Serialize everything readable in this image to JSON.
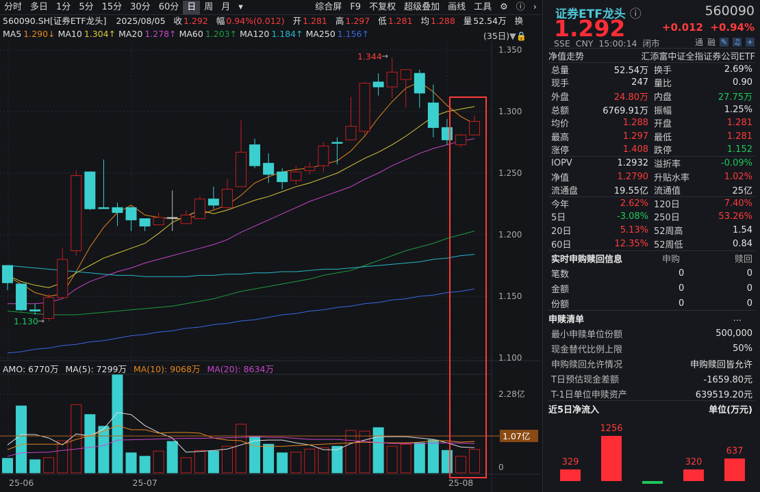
{
  "toolbar": {
    "left": [
      "分时",
      "多日",
      "1分",
      "5分",
      "15分",
      "30分",
      "60分",
      "日",
      "周",
      "月"
    ],
    "active": "日",
    "dropdown": "▾",
    "right": [
      "综合屏",
      "F9",
      "不复权",
      "超级叠加",
      "画线",
      "工具"
    ],
    "icons": [
      "gear-icon",
      "help-icon",
      "chevron-right-icon"
    ]
  },
  "info": {
    "symbol": "560090.SH[证券ETF龙头]",
    "date": "2025/08/05",
    "close_label": "收",
    "close": "1.292",
    "range_label": "幅",
    "range": "0.94%(0.012)",
    "open_label": "开",
    "open": "1.281",
    "high_label": "高",
    "high": "1.297",
    "low_label": "低",
    "low": "1.281",
    "avg_label": "均",
    "avg": "1.288",
    "vol_label": "量",
    "vol": "52.54万",
    "turn_label": "换"
  },
  "ma_legend": [
    {
      "label": "MA5",
      "value": "1.290↓",
      "color": "#e8871e"
    },
    {
      "label": "MA10",
      "value": "1.304↑",
      "color": "#d8c83a"
    },
    {
      "label": "MA20",
      "value": "1.278↑",
      "color": "#c845c8"
    },
    {
      "label": "MA60",
      "value": "1.203↑",
      "color": "#1e9e3e"
    },
    {
      "label": "MA120",
      "value": "1.184↑",
      "color": "#28b8c8"
    },
    {
      "label": "MA250",
      "value": "1.156↑",
      "color": "#3a68e0"
    }
  ],
  "days_label": "(35日)",
  "vol_legend": {
    "amo": "AMO: 6770万",
    "ma5": "MA(5): 7299万",
    "ma10": "MA(10): 9068万",
    "ma20": "MA(20): 8634万"
  },
  "chart_data": [
    {
      "type": "candlestick",
      "yticks": [
        "1.350",
        "1.300",
        "1.250",
        "1.200",
        "1.150",
        "1.100"
      ],
      "ylim": [
        1.1,
        1.35
      ],
      "high_mark": "1.344",
      "low_mark": "1.130",
      "candles": [
        [
          1.175,
          1.175,
          1.155,
          1.161
        ],
        [
          1.16,
          1.16,
          1.138,
          1.139
        ],
        [
          1.139,
          1.144,
          1.135,
          1.138
        ],
        [
          1.132,
          1.152,
          1.13,
          1.149
        ],
        [
          1.149,
          1.189,
          1.149,
          1.18
        ],
        [
          1.187,
          1.252,
          1.183,
          1.248
        ],
        [
          1.251,
          1.251,
          1.22,
          1.221
        ],
        [
          1.222,
          1.261,
          1.221,
          1.222
        ],
        [
          1.222,
          1.226,
          1.207,
          1.218
        ],
        [
          1.222,
          1.223,
          1.203,
          1.212
        ],
        [
          1.213,
          1.213,
          1.203,
          1.207
        ],
        [
          1.208,
          1.218,
          1.208,
          1.214
        ],
        [
          1.214,
          1.236,
          1.203,
          1.214
        ],
        [
          1.209,
          1.22,
          1.209,
          1.216
        ],
        [
          1.213,
          1.231,
          1.213,
          1.229
        ],
        [
          1.229,
          1.239,
          1.221,
          1.224
        ],
        [
          1.222,
          1.245,
          1.221,
          1.237
        ],
        [
          1.239,
          1.293,
          1.239,
          1.267
        ],
        [
          1.273,
          1.278,
          1.254,
          1.256
        ],
        [
          1.258,
          1.266,
          1.242,
          1.249
        ],
        [
          1.251,
          1.254,
          1.237,
          1.243
        ],
        [
          1.244,
          1.256,
          1.241,
          1.251
        ],
        [
          1.252,
          1.259,
          1.249,
          1.255
        ],
        [
          1.256,
          1.275,
          1.251,
          1.272
        ],
        [
          1.275,
          1.279,
          1.257,
          1.275
        ],
        [
          1.277,
          1.312,
          1.277,
          1.288
        ],
        [
          1.284,
          1.324,
          1.281,
          1.323
        ],
        [
          1.324,
          1.331,
          1.313,
          1.32
        ],
        [
          1.32,
          1.344,
          1.311,
          1.332
        ],
        [
          1.326,
          1.334,
          1.303,
          1.334
        ],
        [
          1.331,
          1.334,
          1.303,
          1.315
        ],
        [
          1.307,
          1.322,
          1.279,
          1.287
        ],
        [
          1.287,
          1.294,
          1.273,
          1.277
        ],
        [
          1.273,
          1.282,
          1.271,
          1.281
        ],
        [
          1.281,
          1.297,
          1.281,
          1.292
        ]
      ],
      "candle_format": [
        "open",
        "high",
        "low",
        "close"
      ],
      "ma": {
        "MA5": [
          1.166,
          1.16,
          1.153,
          1.15,
          1.152,
          1.17,
          1.19,
          1.206,
          1.218,
          1.224,
          1.216,
          1.214,
          1.213,
          1.213,
          1.216,
          1.22,
          1.224,
          1.232,
          1.242,
          1.247,
          1.251,
          1.253,
          1.254,
          1.257,
          1.26,
          1.268,
          1.28,
          1.295,
          1.308,
          1.319,
          1.324,
          1.316,
          1.305,
          1.296,
          1.29
        ],
        "MA10": [
          1.167,
          1.162,
          1.159,
          1.157,
          1.161,
          1.169,
          1.175,
          1.181,
          1.185,
          1.189,
          1.193,
          1.201,
          1.21,
          1.215,
          1.22,
          1.217,
          1.22,
          1.224,
          1.228,
          1.231,
          1.235,
          1.239,
          1.242,
          1.246,
          1.25,
          1.256,
          1.262,
          1.267,
          1.273,
          1.28,
          1.288,
          1.296,
          1.3,
          1.302,
          1.304
        ],
        "MA20": [
          1.144,
          1.144,
          1.144,
          1.145,
          1.148,
          1.156,
          1.162,
          1.166,
          1.17,
          1.173,
          1.177,
          1.18,
          1.183,
          1.186,
          1.189,
          1.192,
          1.196,
          1.202,
          1.207,
          1.212,
          1.217,
          1.222,
          1.227,
          1.231,
          1.235,
          1.239,
          1.245,
          1.25,
          1.256,
          1.261,
          1.266,
          1.27,
          1.273,
          1.276,
          1.278
        ],
        "MA60": [
          1.138,
          1.137,
          1.136,
          1.135,
          1.135,
          1.135,
          1.136,
          1.137,
          1.138,
          1.139,
          1.14,
          1.141,
          1.142,
          1.144,
          1.146,
          1.148,
          1.151,
          1.154,
          1.156,
          1.158,
          1.16,
          1.162,
          1.164,
          1.167,
          1.169,
          1.171,
          1.175,
          1.179,
          1.183,
          1.187,
          1.19,
          1.193,
          1.197,
          1.2,
          1.203
        ],
        "MA120": [
          1.175,
          1.174,
          1.173,
          1.172,
          1.171,
          1.17,
          1.169,
          1.168,
          1.167,
          1.167,
          1.166,
          1.166,
          1.166,
          1.166,
          1.167,
          1.167,
          1.168,
          1.168,
          1.169,
          1.169,
          1.17,
          1.17,
          1.171,
          1.172,
          1.172,
          1.173,
          1.174,
          1.175,
          1.176,
          1.177,
          1.178,
          1.18,
          1.181,
          1.183,
          1.184
        ],
        "MA250": [
          1.104,
          1.105,
          1.107,
          1.108,
          1.11,
          1.111,
          1.113,
          1.114,
          1.116,
          1.118,
          1.119,
          1.121,
          1.122,
          1.124,
          1.125,
          1.127,
          1.128,
          1.13,
          1.131,
          1.133,
          1.135,
          1.136,
          1.138,
          1.139,
          1.141,
          1.142,
          1.144,
          1.145,
          1.147,
          1.148,
          1.15,
          1.151,
          1.153,
          1.154,
          1.156
        ]
      },
      "up_color": "#c81e1e",
      "down_color": "#3ccfcf"
    },
    {
      "type": "bar",
      "unit": "亿",
      "yticks": [
        "2.28亿",
        "0"
      ],
      "marker": "1.07亿",
      "marker_value": 1.07,
      "values": [
        0.42,
        1.94,
        0.38,
        0.44,
        0.93,
        1.98,
        1.69,
        1.35,
        2.84,
        0.58,
        0.48,
        0.63,
        0.91,
        0.44,
        0.65,
        0.63,
        0.77,
        1.41,
        1.05,
        0.83,
        0.58,
        0.6,
        0.69,
        0.73,
        0.77,
        1.23,
        1.21,
        1.31,
        0.77,
        0.83,
        0.87,
        0.95,
        0.65,
        0.48,
        0.68
      ],
      "ma": {
        "MA5": [
          0.81,
          1.11,
          1.11,
          1.01,
          0.81,
          1.13,
          1.07,
          1.27,
          1.75,
          1.69,
          1.37,
          1.17,
          1.01,
          0.6,
          0.62,
          0.65,
          0.69,
          0.81,
          0.93,
          0.95,
          0.95,
          0.87,
          0.81,
          0.67,
          0.67,
          0.85,
          0.95,
          1.05,
          1.05,
          1.05,
          1.01,
          0.97,
          0.87,
          0.75,
          0.73
        ],
        "MA10": [
          0.67,
          0.83,
          0.83,
          0.83,
          0.83,
          0.97,
          1.07,
          1.21,
          1.37,
          1.25,
          1.25,
          1.15,
          1.17,
          1.17,
          1.15,
          1.01,
          0.95,
          0.93,
          0.77,
          0.77,
          0.77,
          0.79,
          0.81,
          0.83,
          0.85,
          0.87,
          0.89,
          0.87,
          0.87,
          0.87,
          0.89,
          0.93,
          0.93,
          0.89,
          0.91
        ],
        "MA20": [
          0.48,
          0.58,
          0.59,
          0.6,
          0.65,
          0.69,
          0.74,
          0.79,
          0.95,
          0.96,
          0.97,
          0.98,
          0.99,
          1.0,
          1.0,
          1.01,
          1.02,
          1.03,
          1.05,
          1.03,
          1.03,
          1.0,
          0.97,
          0.97,
          0.97,
          0.94,
          0.91,
          0.88,
          0.85,
          0.85,
          0.85,
          0.86,
          0.87,
          0.86,
          0.85
        ]
      },
      "xticks": [
        {
          "label": "25-06",
          "index": 0
        },
        {
          "label": "25-07",
          "index": 9
        },
        {
          "label": "25-08",
          "index": 32
        }
      ]
    }
  ],
  "highlight_color": "#ff3b3b",
  "panel": {
    "name": "证券ETF龙头",
    "code": "560090",
    "price": "1.292",
    "change": "+0.012",
    "pct": "+0.94%",
    "meta": "SSE  CNY  15:00:14  闭市",
    "tags": [
      "通",
      "融"
    ],
    "nav_trend": "净值走势",
    "fund_name": "汇添富中证全指证券公司ETF",
    "rows": [
      [
        {
          "l": "总量",
          "v": "52.54万",
          "c": "w"
        },
        {
          "l": "换手",
          "v": "2.69%",
          "c": "w"
        }
      ],
      [
        {
          "l": "现手",
          "v": "247",
          "c": "w"
        },
        {
          "l": "量比",
          "v": "0.90",
          "c": "w"
        }
      ],
      [
        {
          "l": "外盘",
          "v": "24.80万",
          "c": "r"
        },
        {
          "l": "内盘",
          "v": "27.75万",
          "c": "g"
        }
      ],
      [
        {
          "l": "总额",
          "v": "6769.91万",
          "c": "w"
        },
        {
          "l": "振幅",
          "v": "1.25%",
          "c": "w"
        }
      ],
      [
        {
          "l": "均价",
          "v": "1.288",
          "c": "r"
        },
        {
          "l": "开盘",
          "v": "1.281",
          "c": "r"
        }
      ],
      [
        {
          "l": "最高",
          "v": "1.297",
          "c": "r"
        },
        {
          "l": "最低",
          "v": "1.281",
          "c": "r"
        }
      ],
      [
        {
          "l": "涨停",
          "v": "1.408",
          "c": "r"
        },
        {
          "l": "跌停",
          "v": "1.152",
          "c": "g"
        }
      ],
      [
        {
          "l": "IOPV",
          "v": "1.2932",
          "c": "w"
        },
        {
          "l": "溢折率",
          "v": "-0.09%",
          "c": "g"
        }
      ],
      [
        {
          "l": "净值",
          "v": "1.2790",
          "c": "r"
        },
        {
          "l": "升贴水率",
          "v": "1.02%",
          "c": "r"
        }
      ],
      [
        {
          "l": "流通盘",
          "v": "19.55亿",
          "c": "w"
        },
        {
          "l": "流通值",
          "v": "25亿",
          "c": "w"
        }
      ],
      [
        {
          "l": "今年",
          "v": "2.62%",
          "c": "r"
        },
        {
          "l": "120日",
          "v": "7.40%",
          "c": "r"
        }
      ],
      [
        {
          "l": "5日",
          "v": "-3.08%",
          "c": "g"
        },
        {
          "l": "250日",
          "v": "53.26%",
          "c": "r"
        }
      ],
      [
        {
          "l": "20日",
          "v": "5.13%",
          "c": "r"
        },
        {
          "l": "52周高",
          "v": "1.54",
          "c": "w"
        }
      ],
      [
        {
          "l": "60日",
          "v": "12.35%",
          "c": "r"
        },
        {
          "l": "52周低",
          "v": "0.84",
          "c": "w"
        }
      ]
    ],
    "realtime": {
      "title": "实时申购赎回信息",
      "col1": "申购",
      "col2": "赎回",
      "rows": [
        [
          "笔数",
          "0",
          "0"
        ],
        [
          "金额",
          "0",
          "0"
        ],
        [
          "份额",
          "0",
          "0"
        ]
      ]
    },
    "list": {
      "title": "申赎清单",
      "more": "...",
      "rows": [
        [
          "最小申赎单位份额",
          "500,000"
        ],
        [
          "现金替代比例上限",
          "50%"
        ],
        [
          "申购赎回允许情况",
          "申购赎回皆允许"
        ],
        [
          "T日预估现金差额",
          "-1659.80元"
        ],
        [
          "T-1日单位申赎资产",
          "639519.20元"
        ]
      ]
    },
    "flow": {
      "title": "近5日净流入",
      "unit": "单位(万元)",
      "values": [
        329,
        1256,
        -80,
        320,
        637
      ],
      "labels": [
        "329",
        "1256",
        "",
        "320",
        "637"
      ]
    }
  }
}
